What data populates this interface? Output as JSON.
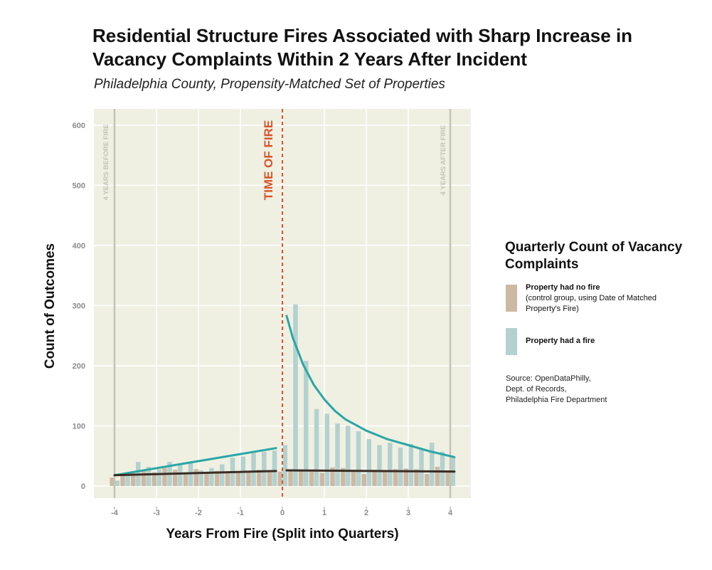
{
  "header": {
    "title": "Residential Structure Fires Associated with Sharp Increase in Vacancy Complaints Within 2 Years After Incident",
    "subtitle": "Philadelphia County, Propensity-Matched Set of Properties"
  },
  "legend": {
    "title": "Quarterly Count of Vacancy Complaints",
    "items": [
      {
        "label": "Property had no fire",
        "detail": "(control group, using Date of Matched Property's Fire)",
        "color": "#cdb9a3"
      },
      {
        "label": "Property had a fire",
        "detail": "",
        "color": "#b3d1cf"
      }
    ]
  },
  "source": {
    "lines": [
      "Source: OpenDataPhilly,",
      "Dept. of Records,",
      "Philadelphia Fire Department"
    ]
  },
  "chart_data": {
    "type": "bar",
    "xlabel": "Years From Fire (Split into Quarters)",
    "ylabel": "Count of Outcomes",
    "xlim": [
      -4.5,
      4.5
    ],
    "ylim": [
      -20,
      625
    ],
    "xticks": [
      -4,
      -3,
      -2,
      -1,
      0,
      1,
      2,
      3,
      4
    ],
    "yticks": [
      0,
      100,
      200,
      300,
      400,
      500,
      600
    ],
    "grid": true,
    "background": "#eff0e2",
    "annotations": [
      {
        "text": "TIME OF FIRE",
        "x": 0,
        "color": "#d8542b"
      },
      {
        "text": "4 YEARS BEFORE FIRE",
        "x": -4,
        "color": "#c2c4b5"
      },
      {
        "text": "4 YEARS AFTER FIRE",
        "x": 4,
        "color": "#c2c4b5"
      }
    ],
    "x": [
      -4,
      -3.75,
      -3.5,
      -3.25,
      -3,
      -2.75,
      -2.5,
      -2.25,
      -2,
      -1.75,
      -1.5,
      -1.25,
      -1,
      -0.75,
      -0.5,
      -0.25,
      0,
      0.25,
      0.5,
      0.75,
      1,
      1.25,
      1.5,
      1.75,
      2,
      2.25,
      2.5,
      2.75,
      3,
      3.25,
      3.5,
      3.75,
      4
    ],
    "series": [
      {
        "name": "Property had no fire",
        "color": "#cdb9a3",
        "values": [
          14,
          20,
          24,
          26,
          23,
          30,
          27,
          21,
          28,
          22,
          25,
          22,
          22,
          23,
          27,
          26,
          24,
          26,
          26,
          24,
          22,
          31,
          30,
          25,
          20,
          27,
          25,
          28,
          29,
          28,
          20,
          32,
          26
        ]
      },
      {
        "name": "Property had a fire",
        "color": "#b3d1cf",
        "values": [
          9,
          18,
          40,
          32,
          28,
          40,
          36,
          38,
          26,
          30,
          36,
          47,
          49,
          55,
          57,
          59,
          68,
          302,
          208,
          128,
          120,
          104,
          100,
          91,
          78,
          68,
          72,
          64,
          70,
          61,
          72,
          57,
          47
        ]
      }
    ],
    "trendlines": [
      {
        "name": "fire trend before",
        "color": "#2aa6a6",
        "points": [
          [
            -4,
            18
          ],
          [
            -0.15,
            63
          ]
        ]
      },
      {
        "name": "fire trend after",
        "color": "#2aa6a6",
        "points": [
          [
            0.1,
            283
          ],
          [
            0.25,
            246
          ],
          [
            0.5,
            201
          ],
          [
            0.75,
            168
          ],
          [
            1,
            144
          ],
          [
            1.25,
            125
          ],
          [
            1.5,
            111
          ],
          [
            2,
            92
          ],
          [
            2.5,
            78
          ],
          [
            3,
            68
          ],
          [
            3.5,
            58
          ],
          [
            4.1,
            48
          ]
        ]
      },
      {
        "name": "no fire trend before",
        "color": "#3a2c24",
        "points": [
          [
            -4,
            18
          ],
          [
            -0.15,
            25
          ]
        ]
      },
      {
        "name": "no fire trend after",
        "color": "#3a2c24",
        "points": [
          [
            0.1,
            26
          ],
          [
            4.1,
            24
          ]
        ]
      }
    ]
  }
}
